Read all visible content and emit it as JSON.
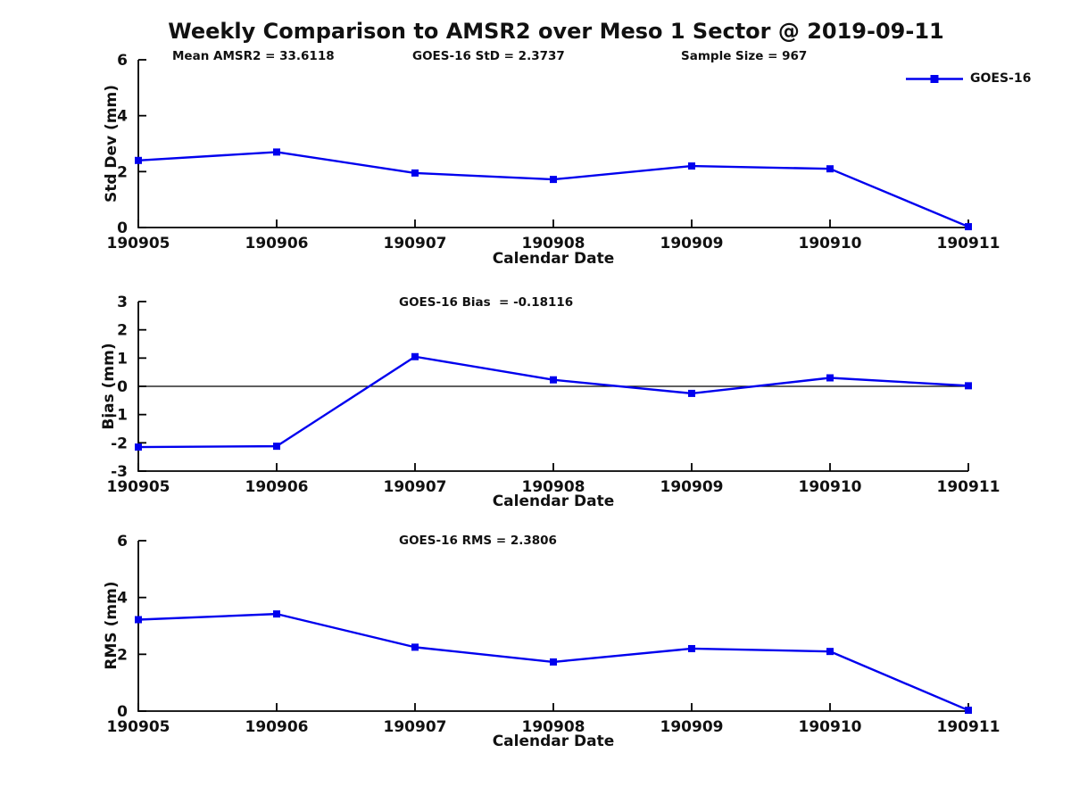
{
  "title": "Weekly Comparison to AMSR2 over Meso 1 Sector @ 2019-09-11",
  "colors": {
    "line": "#0000ee",
    "axis": "#000000",
    "text": "#111111"
  },
  "legend": {
    "label": "GOES-16",
    "position": "top-right"
  },
  "chart_data": [
    {
      "type": "line",
      "name": "stddev",
      "annotations": [
        {
          "text": "Mean AMSR2 = 33.6118"
        },
        {
          "text": "GOES-16 StD = 2.3737"
        },
        {
          "text": "Sample Size = 967"
        }
      ],
      "categories": [
        "190905",
        "190906",
        "190907",
        "190908",
        "190909",
        "190910",
        "190911"
      ],
      "series": [
        {
          "name": "GOES-16",
          "values": [
            2.4,
            2.7,
            1.95,
            1.72,
            2.2,
            2.1,
            0.03
          ]
        }
      ],
      "xlabel": "Calendar Date",
      "ylabel": "Std Dev (mm)",
      "ylim": [
        0,
        6
      ],
      "yticks": [
        0,
        2,
        4,
        6
      ],
      "grid": false,
      "zero_line": false
    },
    {
      "type": "line",
      "name": "bias",
      "annotations": [
        {
          "text": "GOES-16 Bias  = -0.18116"
        }
      ],
      "categories": [
        "190905",
        "190906",
        "190907",
        "190908",
        "190909",
        "190910",
        "190911"
      ],
      "series": [
        {
          "name": "GOES-16",
          "values": [
            -2.15,
            -2.12,
            1.05,
            0.23,
            -0.25,
            0.3,
            0.02
          ]
        }
      ],
      "xlabel": "Calendar Date",
      "ylabel": "Bias (mm)",
      "ylim": [
        -3,
        3
      ],
      "yticks": [
        -3,
        -2,
        -1,
        0,
        1,
        2,
        3
      ],
      "grid": false,
      "zero_line": true
    },
    {
      "type": "line",
      "name": "rms",
      "annotations": [
        {
          "text": "GOES-16 RMS = 2.3806"
        }
      ],
      "categories": [
        "190905",
        "190906",
        "190907",
        "190908",
        "190909",
        "190910",
        "190911"
      ],
      "series": [
        {
          "name": "GOES-16",
          "values": [
            3.22,
            3.42,
            2.25,
            1.73,
            2.2,
            2.1,
            0.03
          ]
        }
      ],
      "xlabel": "Calendar Date",
      "ylabel": "RMS (mm)",
      "ylim": [
        0,
        6
      ],
      "yticks": [
        0,
        2,
        4,
        6
      ],
      "grid": false,
      "zero_line": false
    }
  ]
}
